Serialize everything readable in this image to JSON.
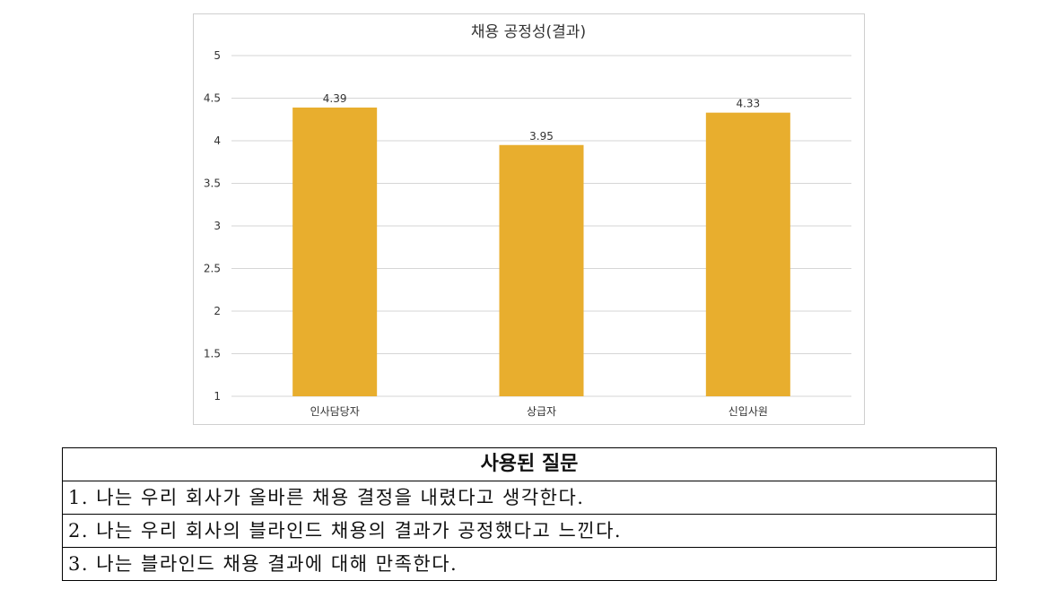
{
  "chart_data": {
    "type": "bar",
    "title": "채용 공정성(결과)",
    "categories": [
      "인사담당자",
      "상급자",
      "신입사원"
    ],
    "values": [
      4.39,
      3.95,
      4.33
    ],
    "data_labels": [
      "4.39",
      "3.95",
      "4.33"
    ],
    "ylim": [
      1,
      5
    ],
    "yticks": [
      "1",
      "1.5",
      "2",
      "2.5",
      "3",
      "3.5",
      "4",
      "4.5",
      "5"
    ],
    "xlabel": "",
    "ylabel": "",
    "grid": true,
    "legend": "none",
    "bar_color": "#E8AE2E"
  },
  "questions": {
    "header": "사용된 질문",
    "items": [
      "1. 나는 우리 회사가 올바른 채용 결정을 내렸다고 생각한다.",
      "2. 나는 우리 회사의 블라인드 채용의 결과가 공정했다고 느낀다.",
      "3. 나는 블라인드 채용 결과에 대해 만족한다."
    ]
  }
}
